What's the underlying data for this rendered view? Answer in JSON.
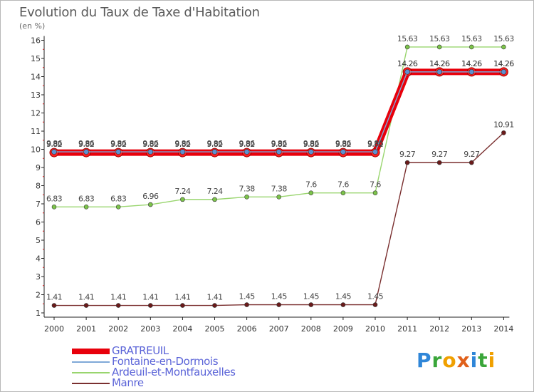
{
  "chart_data": {
    "type": "line",
    "title": "Evolution du Taux de Taxe d'Habitation",
    "subtitle": "(en %)",
    "x": [
      "2000",
      "2001",
      "2002",
      "2003",
      "2004",
      "2005",
      "2006",
      "2007",
      "2008",
      "2009",
      "2010",
      "2011",
      "2012",
      "2013",
      "2014"
    ],
    "yticks": [
      "1",
      "2",
      "3",
      "4",
      "5",
      "6",
      "7",
      "8",
      "9",
      "10",
      "11",
      "12",
      "13",
      "14",
      "15",
      "16"
    ],
    "ylim": [
      1,
      16
    ],
    "grid": false,
    "legend_position": "bottom-left",
    "series": [
      {
        "name": "Manre",
        "color": "#7a2f2f",
        "marker": "#6b1a1a",
        "values": [
          1.41,
          1.41,
          1.41,
          1.41,
          1.41,
          1.41,
          1.45,
          1.45,
          1.45,
          1.45,
          1.45,
          9.27,
          9.27,
          9.27,
          10.91
        ],
        "labels": [
          "1.41",
          "1.41",
          "1.41",
          "1.41",
          "1.41",
          "1.41",
          "1.45",
          "1.45",
          "1.45",
          "1.45",
          "1.45",
          "9.27",
          "9.27",
          "9.27",
          "10.91"
        ]
      },
      {
        "name": "Ardeuil-et-Montfauxelles",
        "color": "#99d56e",
        "marker": "#7cc44a",
        "values": [
          6.83,
          6.83,
          6.83,
          6.96,
          7.24,
          7.24,
          7.38,
          7.38,
          7.6,
          7.6,
          7.6,
          15.63,
          15.63,
          15.63,
          15.63
        ],
        "labels": [
          "6.83",
          "6.83",
          "6.83",
          "6.96",
          "7.24",
          "7.24",
          "7.38",
          "7.38",
          "7.6",
          "7.6",
          "7.6",
          "15.63",
          "15.63",
          "15.63",
          "15.63"
        ]
      },
      {
        "name": "GRATREUIL",
        "color": "#e8000b",
        "marker": "#c00000",
        "values": [
          9.82,
          9.82,
          9.82,
          9.82,
          9.82,
          9.82,
          9.82,
          9.82,
          9.82,
          9.82,
          9.82,
          14.26,
          14.26,
          14.26,
          14.26
        ],
        "labels": [
          "9.82",
          "9.82",
          "9.82",
          "9.82",
          "9.82",
          "9.82",
          "9.82",
          "9.82",
          "9.82",
          "9.82",
          "9.82",
          "14.26",
          "14.26",
          "14.26",
          "14.26"
        ]
      },
      {
        "name": "Fontaine-en-Dormois",
        "color": "#7fa8d8",
        "marker": "#5d8fd0",
        "values": [
          9.86,
          9.86,
          9.86,
          9.86,
          9.86,
          9.86,
          9.86,
          9.86,
          9.86,
          9.86,
          9.86,
          14.26,
          14.26,
          14.26,
          14.26
        ],
        "labels": [
          "9.86",
          "9.86",
          "9.86",
          "9.86",
          "9.86",
          "9.86",
          "9.86",
          "9.86",
          "9.86",
          "9.86",
          "9.86",
          "14.26",
          "14.26",
          "14.26",
          "14.26"
        ]
      }
    ],
    "legend": [
      {
        "name": "GRATREUIL",
        "color": "#e8000b"
      },
      {
        "name": "Fontaine-en-Dormois",
        "color": "#7fa8d8"
      },
      {
        "name": "Ardeuil-et-Montfauxelles",
        "color": "#99d56e"
      },
      {
        "name": "Manre",
        "color": "#7a2f2f"
      }
    ]
  },
  "brand": {
    "letters": [
      "P",
      "r",
      "o",
      "x",
      "i",
      "t",
      "i"
    ],
    "colors": [
      "#2f86d8",
      "#3aa63a",
      "#f0a000",
      "#e0601a",
      "#2f86d8",
      "#3aa63a",
      "#f0a000"
    ]
  }
}
